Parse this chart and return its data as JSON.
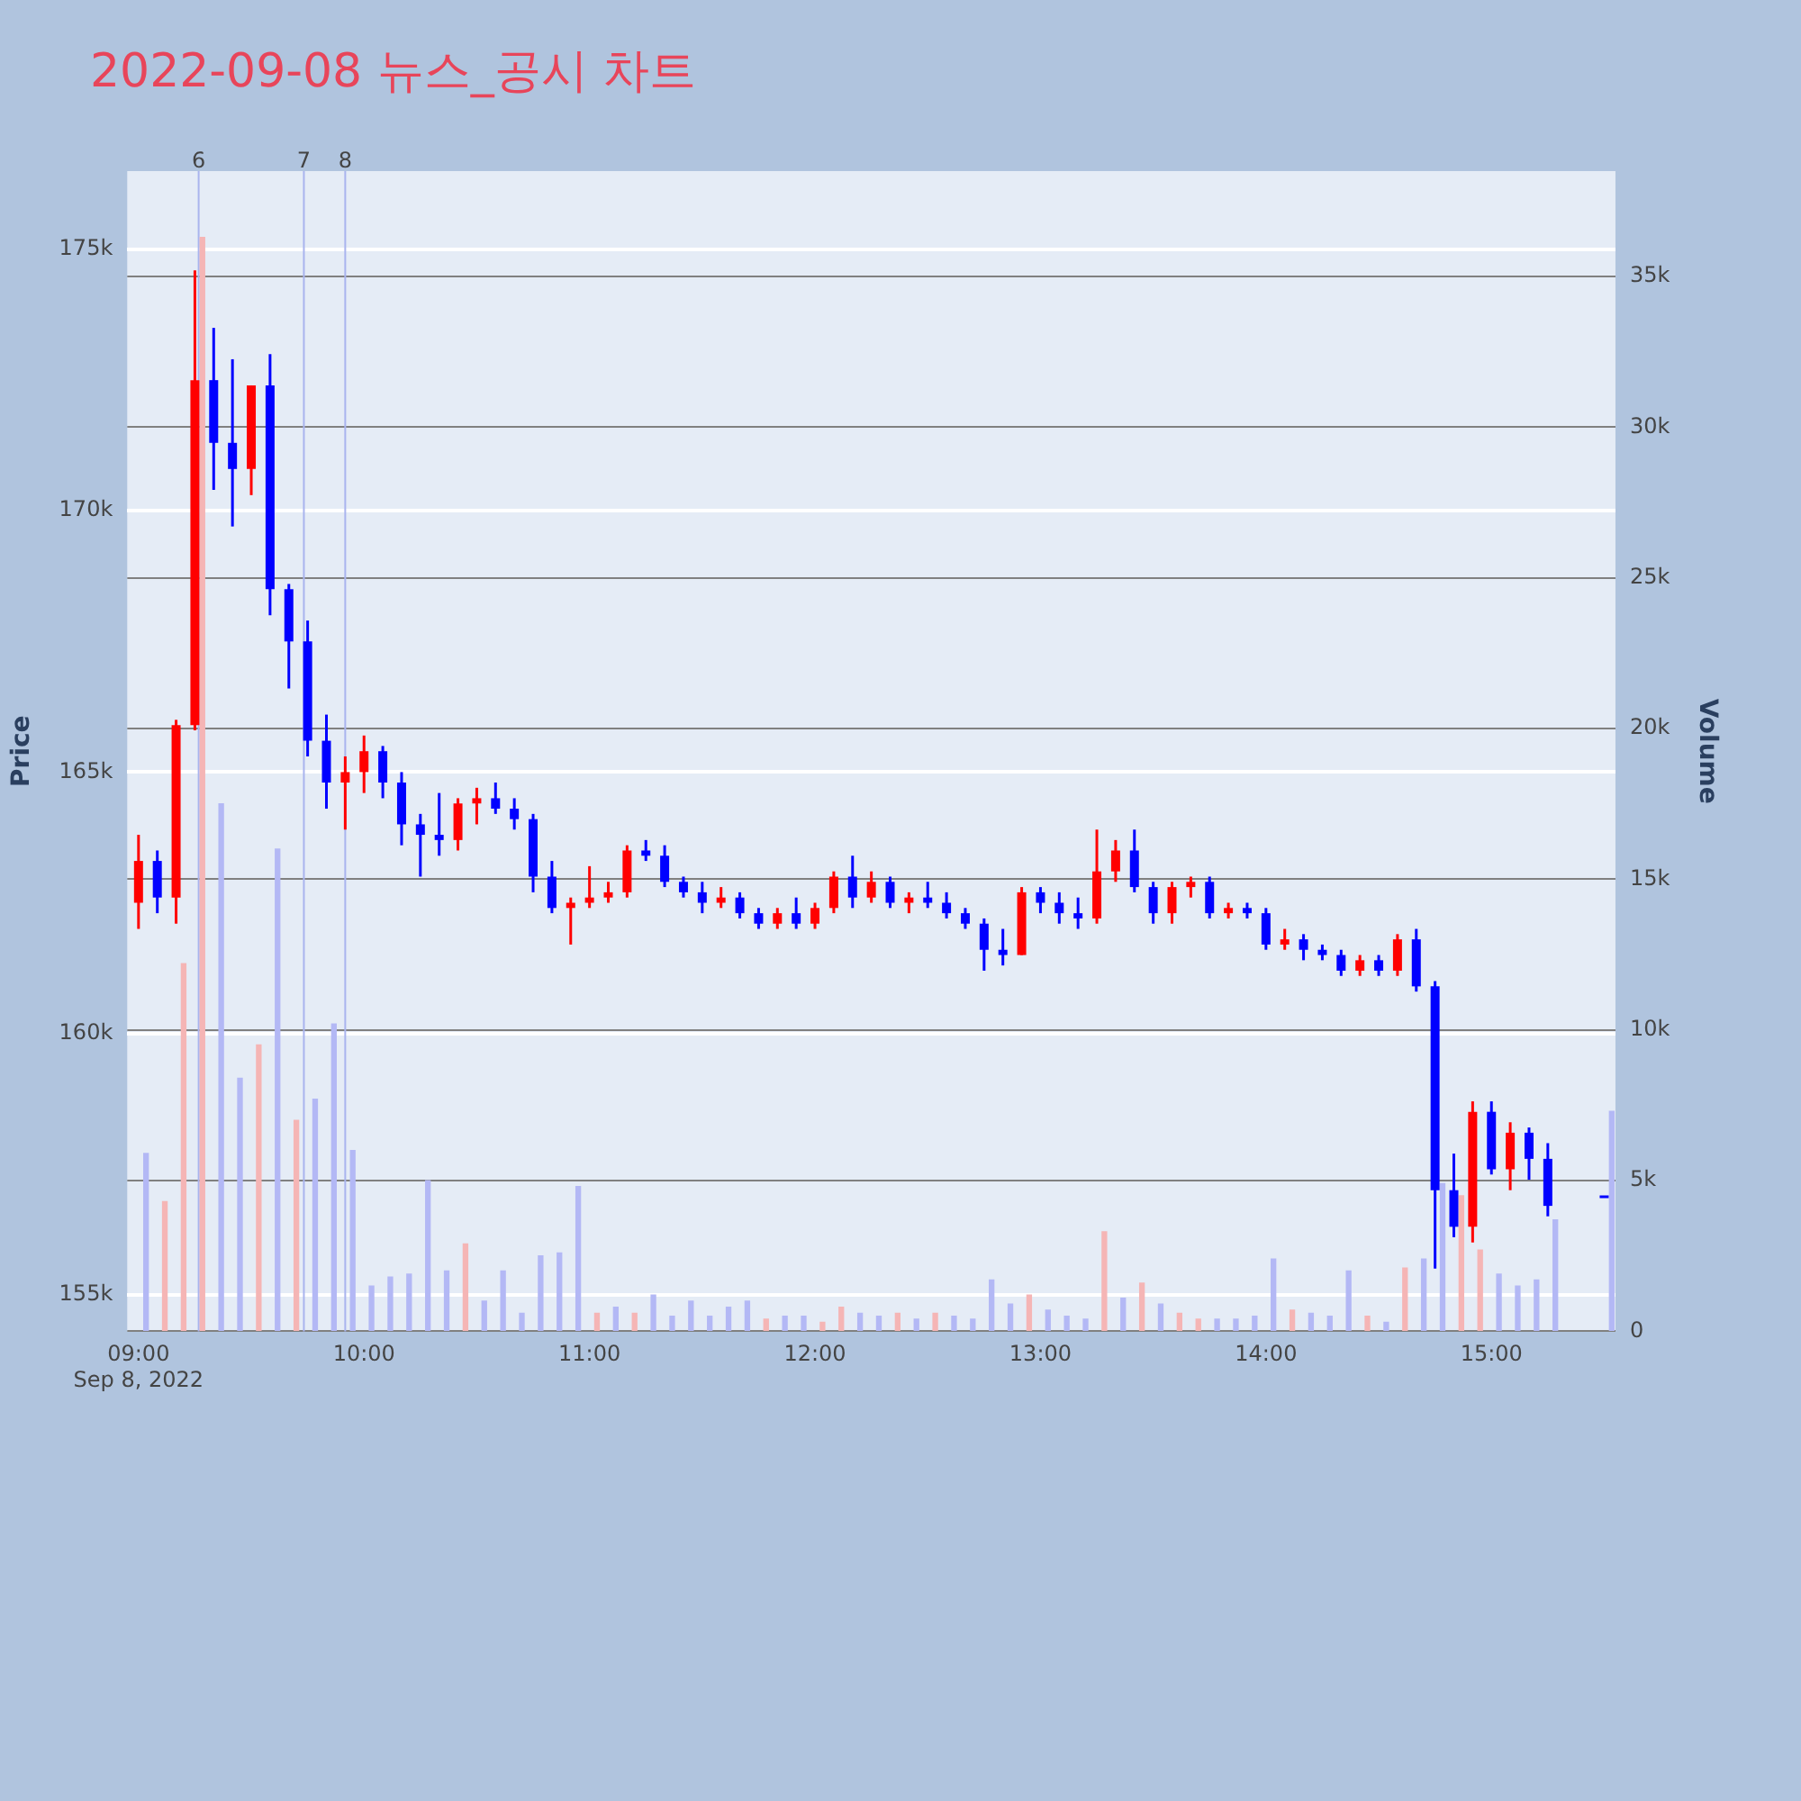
{
  "chart_data": {
    "type": "candlestick",
    "title": "2022-09-08 뉴스_공시 차트",
    "ylabel": "Price",
    "y2label": "Volume",
    "legend": false,
    "grid": "y",
    "x": [
      "2022-09-08T09:00",
      "2022-09-08T09:05",
      "2022-09-08T09:10",
      "2022-09-08T09:15",
      "2022-09-08T09:20",
      "2022-09-08T09:25",
      "2022-09-08T09:30",
      "2022-09-08T09:35",
      "2022-09-08T09:40",
      "2022-09-08T09:45",
      "2022-09-08T09:50",
      "2022-09-08T09:55",
      "2022-09-08T10:00",
      "2022-09-08T10:05",
      "2022-09-08T10:10",
      "2022-09-08T10:15",
      "2022-09-08T10:20",
      "2022-09-08T10:25",
      "2022-09-08T10:30",
      "2022-09-08T10:35",
      "2022-09-08T10:40",
      "2022-09-08T10:45",
      "2022-09-08T10:50",
      "2022-09-08T10:55",
      "2022-09-08T11:00",
      "2022-09-08T11:05",
      "2022-09-08T11:10",
      "2022-09-08T11:15",
      "2022-09-08T11:20",
      "2022-09-08T11:25",
      "2022-09-08T11:30",
      "2022-09-08T11:35",
      "2022-09-08T11:40",
      "2022-09-08T11:45",
      "2022-09-08T11:50",
      "2022-09-08T11:55",
      "2022-09-08T12:00",
      "2022-09-08T12:05",
      "2022-09-08T12:10",
      "2022-09-08T12:15",
      "2022-09-08T12:20",
      "2022-09-08T12:25",
      "2022-09-08T12:30",
      "2022-09-08T12:35",
      "2022-09-08T12:40",
      "2022-09-08T12:45",
      "2022-09-08T12:50",
      "2022-09-08T12:55",
      "2022-09-08T13:00",
      "2022-09-08T13:05",
      "2022-09-08T13:10",
      "2022-09-08T13:15",
      "2022-09-08T13:20",
      "2022-09-08T13:25",
      "2022-09-08T13:30",
      "2022-09-08T13:35",
      "2022-09-08T13:40",
      "2022-09-08T13:45",
      "2022-09-08T13:50",
      "2022-09-08T13:55",
      "2022-09-08T14:00",
      "2022-09-08T14:05",
      "2022-09-08T14:10",
      "2022-09-08T14:15",
      "2022-09-08T14:20",
      "2022-09-08T14:25",
      "2022-09-08T14:30",
      "2022-09-08T14:35",
      "2022-09-08T14:40",
      "2022-09-08T14:45",
      "2022-09-08T14:50",
      "2022-09-08T14:55",
      "2022-09-08T15:00",
      "2022-09-08T15:05",
      "2022-09-08T15:10",
      "2022-09-08T15:15",
      "2022-09-08T15:30"
    ],
    "xlim": [
      "2022-09-08T08:57",
      "2022-09-08T15:33"
    ],
    "xticks": [
      {
        "value": "2022-09-08T09:00",
        "label": "09:00\nSep 8, 2022"
      },
      {
        "value": "2022-09-08T10:00",
        "label": "10:00"
      },
      {
        "value": "2022-09-08T11:00",
        "label": "11:00"
      },
      {
        "value": "2022-09-08T12:00",
        "label": "12:00"
      },
      {
        "value": "2022-09-08T13:00",
        "label": "13:00"
      },
      {
        "value": "2022-09-08T14:00",
        "label": "14:00"
      },
      {
        "value": "2022-09-08T15:00",
        "label": "15:00"
      }
    ],
    "ylim": [
      154300,
      176500
    ],
    "yticks": [
      {
        "value": 155000,
        "label": "155k"
      },
      {
        "value": 160000,
        "label": "160k"
      },
      {
        "value": 165000,
        "label": "165k"
      },
      {
        "value": 170000,
        "label": "170k"
      },
      {
        "value": 175000,
        "label": "175k"
      }
    ],
    "y2lim": [
      0,
      38500
    ],
    "y2ticks": [
      0,
      {
        "value": 5000,
        "label": "5k"
      },
      {
        "value": 10000,
        "label": "10k"
      },
      {
        "value": 15000,
        "label": "15k"
      },
      {
        "value": 20000,
        "label": "20k"
      },
      {
        "value": 25000,
        "label": "25k"
      },
      {
        "value": 30000,
        "label": "30k"
      },
      {
        "value": 35000,
        "label": "35k"
      }
    ],
    "ref_lines": [
      {
        "axis": "x",
        "value": "2022-09-08T09:16",
        "label": "6",
        "color": "#a9b4ee"
      },
      {
        "axis": "x",
        "value": "2022-09-08T09:44",
        "label": "7",
        "color": "#a9b4ee"
      },
      {
        "axis": "x",
        "value": "2022-09-08T09:55",
        "label": "8",
        "color": "#a9b4ee"
      }
    ],
    "series": [
      {
        "type": "bar",
        "axis": "y2",
        "x": [
          "2022-09-08T09:02",
          "2022-09-08T09:07",
          "2022-09-08T09:12",
          "2022-09-08T09:17",
          "2022-09-08T09:22",
          "2022-09-08T09:27",
          "2022-09-08T09:32",
          "2022-09-08T09:37",
          "2022-09-08T09:42",
          "2022-09-08T09:47",
          "2022-09-08T09:52",
          "2022-09-08T09:57",
          "2022-09-08T10:02",
          "2022-09-08T10:07",
          "2022-09-08T10:12",
          "2022-09-08T10:17",
          "2022-09-08T10:22",
          "2022-09-08T10:27",
          "2022-09-08T10:32",
          "2022-09-08T10:37",
          "2022-09-08T10:42",
          "2022-09-08T10:47",
          "2022-09-08T10:52",
          "2022-09-08T10:57",
          "2022-09-08T11:02",
          "2022-09-08T11:07",
          "2022-09-08T11:12",
          "2022-09-08T11:17",
          "2022-09-08T11:22",
          "2022-09-08T11:27",
          "2022-09-08T11:32",
          "2022-09-08T11:37",
          "2022-09-08T11:42",
          "2022-09-08T11:47",
          "2022-09-08T11:52",
          "2022-09-08T11:57",
          "2022-09-08T12:02",
          "2022-09-08T12:07",
          "2022-09-08T12:12",
          "2022-09-08T12:17",
          "2022-09-08T12:22",
          "2022-09-08T12:27",
          "2022-09-08T12:32",
          "2022-09-08T12:37",
          "2022-09-08T12:42",
          "2022-09-08T12:47",
          "2022-09-08T12:52",
          "2022-09-08T12:57",
          "2022-09-08T13:02",
          "2022-09-08T13:07",
          "2022-09-08T13:12",
          "2022-09-08T13:17",
          "2022-09-08T13:22",
          "2022-09-08T13:27",
          "2022-09-08T13:32",
          "2022-09-08T13:37",
          "2022-09-08T13:42",
          "2022-09-08T13:47",
          "2022-09-08T13:52",
          "2022-09-08T13:57",
          "2022-09-08T14:02",
          "2022-09-08T14:07",
          "2022-09-08T14:12",
          "2022-09-08T14:17",
          "2022-09-08T14:22",
          "2022-09-08T14:27",
          "2022-09-08T14:32",
          "2022-09-08T14:37",
          "2022-09-08T14:42",
          "2022-09-08T14:47",
          "2022-09-08T14:52",
          "2022-09-08T14:57",
          "2022-09-08T15:02",
          "2022-09-08T15:07",
          "2022-09-08T15:12",
          "2022-09-08T15:17",
          "2022-09-08T15:32"
        ],
        "colors": [
          "#b3b8f5",
          "#f5b5b5",
          "#f5b5b5",
          "#f5b5b5",
          "#b3b8f5",
          "#b3b8f5",
          "#f5b5b5",
          "#b3b8f5",
          "#f5b5b5",
          "#b3b8f5",
          "#b3b8f5",
          "#b3b8f5",
          "#b3b8f5",
          "#b3b8f5",
          "#b3b8f5",
          "#b3b8f5",
          "#b3b8f5",
          "#f5b5b5",
          "#b3b8f5",
          "#b3b8f5",
          "#b3b8f5",
          "#b3b8f5",
          "#b3b8f5",
          "#b3b8f5",
          "#f5b5b5",
          "#b3b8f5",
          "#f5b5b5",
          "#b3b8f5",
          "#b3b8f5",
          "#b3b8f5",
          "#b3b8f5",
          "#b3b8f5",
          "#b3b8f5",
          "#f5b5b5",
          "#b3b8f5",
          "#b3b8f5",
          "#f5b5b5",
          "#f5b5b5",
          "#b3b8f5",
          "#b3b8f5",
          "#f5b5b5",
          "#b3b8f5",
          "#f5b5b5",
          "#b3b8f5",
          "#b3b8f5",
          "#b3b8f5",
          "#b3b8f5",
          "#f5b5b5",
          "#b3b8f5",
          "#b3b8f5",
          "#b3b8f5",
          "#f5b5b5",
          "#b3b8f5",
          "#f5b5b5",
          "#b3b8f5",
          "#f5b5b5",
          "#f5b5b5",
          "#b3b8f5",
          "#b3b8f5",
          "#b3b8f5",
          "#b3b8f5",
          "#f5b5b5",
          "#b3b8f5",
          "#b3b8f5",
          "#b3b8f5",
          "#f5b5b5",
          "#b3b8f5",
          "#f5b5b5",
          "#b3b8f5",
          "#b3b8f5",
          "#f5b5b5",
          "#f5b5b5",
          "#b3b8f5",
          "#b3b8f5",
          "#b3b8f5",
          "#b3b8f5",
          "#b3b8f5"
        ],
        "values": [
          5900,
          4300,
          12200,
          36300,
          17500,
          8400,
          9500,
          16000,
          7000,
          7700,
          10200,
          6000,
          1500,
          1800,
          1900,
          5000,
          2000,
          2900,
          1000,
          2000,
          600,
          2500,
          2600,
          4800,
          600,
          800,
          600,
          1200,
          500,
          1000,
          500,
          800,
          1000,
          400,
          500,
          500,
          300,
          800,
          600,
          500,
          600,
          400,
          600,
          500,
          400,
          1700,
          900,
          1200,
          700,
          500,
          400,
          3300,
          1100,
          1600,
          900,
          600,
          400,
          400,
          400,
          500,
          2400,
          700,
          600,
          500,
          2000,
          500,
          300,
          2100,
          2400,
          4900,
          4500,
          2700,
          1900,
          1500,
          1700,
          3700,
          7300
        ]
      },
      {
        "type": "candlestick",
        "colors": [
          "#ff0000",
          "#0000ff",
          "#ff0000",
          "#ff0000",
          "#0000ff",
          "#0000ff",
          "#ff0000",
          "#0000ff",
          "#0000ff",
          "#0000ff",
          "#0000ff",
          "#ff0000",
          "#ff0000",
          "#0000ff",
          "#0000ff",
          "#0000ff",
          "#0000ff",
          "#ff0000",
          "#ff0000",
          "#0000ff",
          "#0000ff",
          "#0000ff",
          "#0000ff",
          "#ff0000",
          "#ff0000",
          "#ff0000",
          "#ff0000",
          "#0000ff",
          "#0000ff",
          "#0000ff",
          "#0000ff",
          "#ff0000",
          "#0000ff",
          "#0000ff",
          "#ff0000",
          "#0000ff",
          "#ff0000",
          "#ff0000",
          "#0000ff",
          "#ff0000",
          "#0000ff",
          "#ff0000",
          "#0000ff",
          "#0000ff",
          "#0000ff",
          "#0000ff",
          "#0000ff",
          "#ff0000",
          "#0000ff",
          "#0000ff",
          "#0000ff",
          "#ff0000",
          "#ff0000",
          "#0000ff",
          "#0000ff",
          "#ff0000",
          "#ff0000",
          "#0000ff",
          "#ff0000",
          "#0000ff",
          "#0000ff",
          "#ff0000",
          "#0000ff",
          "#0000ff",
          "#0000ff",
          "#ff0000",
          "#0000ff",
          "#ff0000",
          "#0000ff",
          "#0000ff",
          "#0000ff",
          "#ff0000",
          "#0000ff",
          "#ff0000",
          "#0000ff",
          "#0000ff",
          "#0000ff"
        ],
        "ohlc": [
          [
            162500,
            163800,
            162000,
            163300
          ],
          [
            163300,
            163500,
            162300,
            162600
          ],
          [
            162600,
            166000,
            162100,
            165900
          ],
          [
            165900,
            174600,
            165800,
            172500
          ],
          [
            172500,
            173500,
            170400,
            171300
          ],
          [
            171300,
            172900,
            169700,
            170800
          ],
          [
            170800,
            172400,
            170300,
            172400
          ],
          [
            172400,
            173000,
            168000,
            168500
          ],
          [
            168500,
            168600,
            166600,
            167500
          ],
          [
            167500,
            167900,
            165300,
            165600
          ],
          [
            165600,
            166100,
            164300,
            164800
          ],
          [
            164800,
            165300,
            163900,
            165000
          ],
          [
            165000,
            165700,
            164600,
            165400
          ],
          [
            165400,
            165500,
            164500,
            164800
          ],
          [
            164800,
            165000,
            163600,
            164000
          ],
          [
            164000,
            164200,
            163000,
            163800
          ],
          [
            163800,
            164600,
            163400,
            163700
          ],
          [
            163700,
            164500,
            163500,
            164400
          ],
          [
            164400,
            164700,
            164000,
            164500
          ],
          [
            164500,
            164800,
            164200,
            164300
          ],
          [
            164300,
            164500,
            163900,
            164100
          ],
          [
            164100,
            164200,
            162700,
            163000
          ],
          [
            163000,
            163300,
            162300,
            162400
          ],
          [
            162400,
            162600,
            161700,
            162500
          ],
          [
            162500,
            163200,
            162400,
            162600
          ],
          [
            162600,
            162900,
            162500,
            162700
          ],
          [
            162700,
            163600,
            162600,
            163500
          ],
          [
            163500,
            163700,
            163300,
            163400
          ],
          [
            163400,
            163600,
            162800,
            162900
          ],
          [
            162900,
            163000,
            162600,
            162700
          ],
          [
            162700,
            162900,
            162300,
            162500
          ],
          [
            162500,
            162800,
            162400,
            162600
          ],
          [
            162600,
            162700,
            162200,
            162300
          ],
          [
            162300,
            162400,
            162000,
            162100
          ],
          [
            162100,
            162400,
            162000,
            162300
          ],
          [
            162300,
            162600,
            162000,
            162100
          ],
          [
            162100,
            162500,
            162000,
            162400
          ],
          [
            162400,
            163100,
            162300,
            163000
          ],
          [
            163000,
            163400,
            162400,
            162600
          ],
          [
            162600,
            163100,
            162500,
            162900
          ],
          [
            162900,
            163000,
            162400,
            162500
          ],
          [
            162500,
            162700,
            162300,
            162600
          ],
          [
            162600,
            162900,
            162400,
            162500
          ],
          [
            162500,
            162700,
            162200,
            162300
          ],
          [
            162300,
            162400,
            162000,
            162100
          ],
          [
            162100,
            162200,
            161200,
            161600
          ],
          [
            161600,
            162000,
            161300,
            161500
          ],
          [
            161500,
            162800,
            161500,
            162700
          ],
          [
            162700,
            162800,
            162300,
            162500
          ],
          [
            162500,
            162700,
            162100,
            162300
          ],
          [
            162300,
            162600,
            162000,
            162200
          ],
          [
            162200,
            163900,
            162100,
            163100
          ],
          [
            163100,
            163700,
            162900,
            163500
          ],
          [
            163500,
            163900,
            162700,
            162800
          ],
          [
            162800,
            162900,
            162100,
            162300
          ],
          [
            162300,
            162900,
            162100,
            162800
          ],
          [
            162800,
            163000,
            162600,
            162900
          ],
          [
            162900,
            163000,
            162200,
            162300
          ],
          [
            162300,
            162500,
            162200,
            162400
          ],
          [
            162400,
            162500,
            162200,
            162300
          ],
          [
            162300,
            162400,
            161600,
            161700
          ],
          [
            161700,
            162000,
            161600,
            161800
          ],
          [
            161800,
            161900,
            161400,
            161600
          ],
          [
            161600,
            161700,
            161400,
            161500
          ],
          [
            161500,
            161600,
            161100,
            161200
          ],
          [
            161200,
            161500,
            161100,
            161400
          ],
          [
            161400,
            161500,
            161100,
            161200
          ],
          [
            161200,
            161900,
            161100,
            161800
          ],
          [
            161800,
            162000,
            160800,
            160900
          ],
          [
            160900,
            161000,
            155500,
            157000
          ],
          [
            157000,
            157700,
            156100,
            156300
          ],
          [
            156300,
            158700,
            156000,
            158500
          ],
          [
            158500,
            158700,
            157300,
            157400
          ],
          [
            157400,
            158300,
            157000,
            158100
          ],
          [
            158100,
            158200,
            157200,
            157600
          ],
          [
            157600,
            157900,
            156500,
            156700
          ],
          [
            156900,
            156900,
            156900,
            156900
          ]
        ]
      }
    ]
  }
}
